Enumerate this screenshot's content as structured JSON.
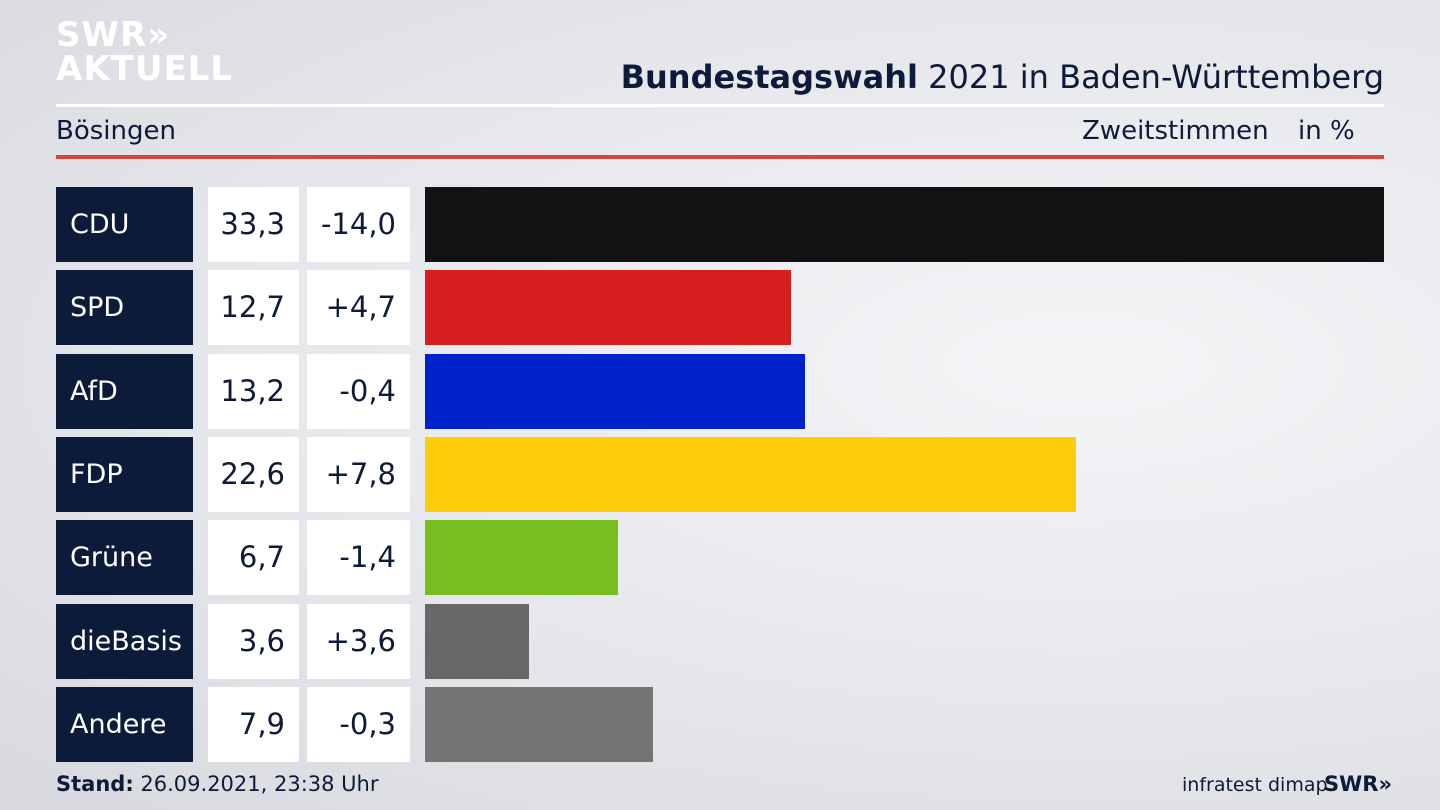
{
  "brand": {
    "logo_line1": "SWR»",
    "logo_line2": "AKTUELL",
    "footer_logo": "SWR»"
  },
  "header": {
    "title_bold": "Bundestagswahl",
    "title_rest": " 2021 in Baden-Württemberg",
    "region": "Bösingen",
    "vote_type": "Zweitstimmen",
    "unit": "in %"
  },
  "footer": {
    "stand_label": "Stand:",
    "stand_value": " 26.09.2021, 23:38 Uhr",
    "source": "infratest dimap"
  },
  "chart_data": {
    "type": "bar",
    "orientation": "horizontal",
    "categories": [
      "CDU",
      "SPD",
      "AfD",
      "FDP",
      "Grüne",
      "dieBasis",
      "Andere"
    ],
    "values": [
      33.3,
      12.7,
      13.2,
      22.6,
      6.7,
      3.6,
      7.9
    ],
    "value_labels": [
      "33,3",
      "12,7",
      "13,2",
      "22,6",
      "6,7",
      "3,6",
      "7,9"
    ],
    "diff_labels": [
      "-14,0",
      "+4,7",
      "-0,4",
      "+7,8",
      "-1,4",
      "+3,6",
      "-0,3"
    ],
    "colors": [
      "#121212",
      "#d81f1f",
      "#0022cc",
      "#fecd0a",
      "#78be1e",
      "#686868",
      "#747474"
    ],
    "xlim": [
      0,
      33.3
    ],
    "grid": false
  }
}
